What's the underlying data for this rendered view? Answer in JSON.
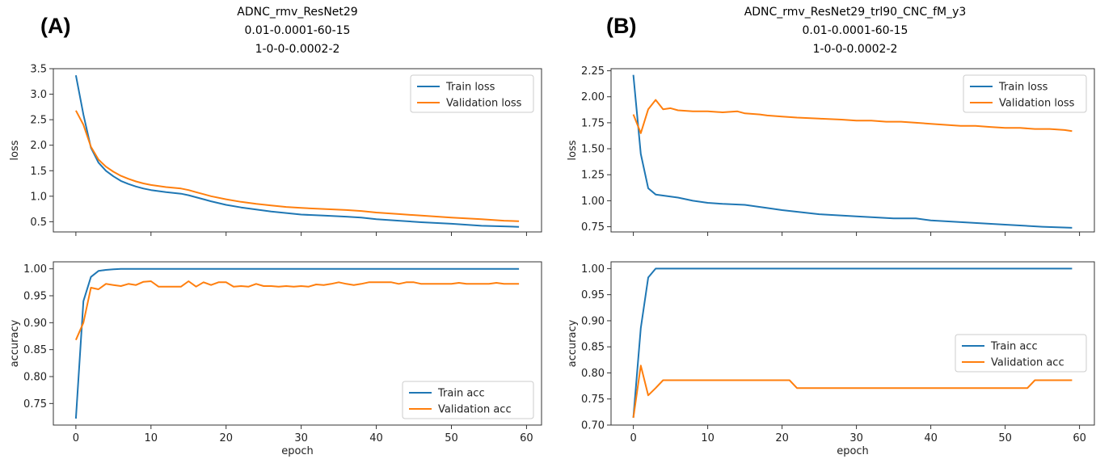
{
  "figure": {
    "panels": [
      {
        "label": "(A)",
        "title_lines": [
          "ADNC_rmv_ResNet29",
          "0.01-0.0001-60-15",
          "1-0-0-0.0002-2"
        ]
      },
      {
        "label": "(B)",
        "title_lines": [
          "ADNC_rmv_ResNet29_trl90_CNC_fM_y3",
          "0.01-0.0001-60-15",
          "1-0-0-0.0002-2"
        ]
      }
    ]
  },
  "colors": {
    "train": "#1f77b4",
    "validation": "#ff7f0e",
    "axis": "#333333"
  },
  "chart_data": [
    {
      "panel": "A",
      "type": "line",
      "ylabel": "loss",
      "xlabel": "",
      "xlim": [
        -3,
        62
      ],
      "ylim": [
        0.3,
        3.5
      ],
      "xticks": [
        0,
        10,
        20,
        30,
        40,
        50,
        60
      ],
      "yticks": [
        0.5,
        1.0,
        1.5,
        2.0,
        2.5,
        3.0,
        3.5
      ],
      "ytick_labels": [
        "0.5",
        "1.0",
        "1.5",
        "2.0",
        "2.5",
        "3.0",
        "3.5"
      ],
      "show_xtick_labels": false,
      "legend": "upper right",
      "series": [
        {
          "name": "Train loss",
          "role": "train",
          "x": [
            0,
            1,
            2,
            3,
            4,
            5,
            6,
            7,
            8,
            9,
            10,
            12,
            14,
            15,
            16,
            18,
            20,
            22,
            24,
            26,
            28,
            30,
            33,
            36,
            38,
            40,
            43,
            46,
            50,
            54,
            57,
            59
          ],
          "y": [
            3.37,
            2.6,
            1.95,
            1.66,
            1.5,
            1.39,
            1.3,
            1.24,
            1.19,
            1.15,
            1.12,
            1.08,
            1.05,
            1.02,
            0.98,
            0.9,
            0.83,
            0.78,
            0.74,
            0.7,
            0.67,
            0.64,
            0.62,
            0.6,
            0.58,
            0.55,
            0.52,
            0.49,
            0.46,
            0.42,
            0.41,
            0.4
          ]
        },
        {
          "name": "Validation loss",
          "role": "validation",
          "x": [
            0,
            1,
            2,
            3,
            4,
            5,
            6,
            7,
            8,
            9,
            10,
            12,
            14,
            15,
            16,
            18,
            20,
            22,
            24,
            26,
            28,
            30,
            33,
            36,
            38,
            40,
            43,
            46,
            50,
            54,
            57,
            59
          ],
          "y": [
            2.68,
            2.4,
            1.97,
            1.72,
            1.58,
            1.48,
            1.4,
            1.34,
            1.29,
            1.25,
            1.22,
            1.18,
            1.15,
            1.12,
            1.08,
            1.0,
            0.94,
            0.89,
            0.85,
            0.82,
            0.79,
            0.77,
            0.75,
            0.73,
            0.71,
            0.68,
            0.65,
            0.62,
            0.58,
            0.55,
            0.52,
            0.51
          ]
        }
      ]
    },
    {
      "panel": "A",
      "type": "line",
      "ylabel": "accuracy",
      "xlabel": "epoch",
      "xlim": [
        -3,
        62
      ],
      "ylim": [
        0.71,
        1.013
      ],
      "xticks": [
        0,
        10,
        20,
        30,
        40,
        50,
        60
      ],
      "yticks": [
        0.75,
        0.8,
        0.85,
        0.9,
        0.95,
        1.0
      ],
      "ytick_labels": [
        "0.75",
        "0.80",
        "0.85",
        "0.90",
        "0.95",
        "1.00"
      ],
      "show_xtick_labels": true,
      "legend": "lower right",
      "series": [
        {
          "name": "Train acc",
          "role": "train",
          "x": [
            0,
            1,
            2,
            3,
            4,
            5,
            6,
            7,
            8,
            10,
            15,
            20,
            30,
            40,
            50,
            59
          ],
          "y": [
            0.722,
            0.94,
            0.985,
            0.996,
            0.998,
            0.999,
            1.0,
            1.0,
            1.0,
            1.0,
            1.0,
            1.0,
            1.0,
            1.0,
            1.0,
            1.0
          ]
        },
        {
          "name": "Validation acc",
          "role": "validation",
          "x": [
            0,
            1,
            2,
            3,
            4,
            5,
            6,
            7,
            8,
            9,
            10,
            11,
            12,
            13,
            14,
            15,
            16,
            17,
            18,
            19,
            20,
            21,
            22,
            23,
            24,
            25,
            26,
            27,
            28,
            29,
            30,
            31,
            32,
            33,
            34,
            35,
            36,
            37,
            38,
            39,
            40,
            41,
            42,
            43,
            44,
            45,
            46,
            47,
            48,
            49,
            50,
            51,
            52,
            53,
            54,
            55,
            56,
            57,
            58,
            59
          ],
          "y": [
            0.868,
            0.9,
            0.965,
            0.962,
            0.972,
            0.97,
            0.968,
            0.972,
            0.97,
            0.976,
            0.977,
            0.967,
            0.967,
            0.967,
            0.967,
            0.977,
            0.967,
            0.975,
            0.97,
            0.975,
            0.975,
            0.967,
            0.968,
            0.967,
            0.972,
            0.968,
            0.968,
            0.967,
            0.968,
            0.967,
            0.968,
            0.967,
            0.971,
            0.97,
            0.972,
            0.975,
            0.972,
            0.97,
            0.972,
            0.975,
            0.975,
            0.975,
            0.975,
            0.972,
            0.975,
            0.975,
            0.972,
            0.972,
            0.972,
            0.972,
            0.972,
            0.974,
            0.972,
            0.972,
            0.972,
            0.972,
            0.974,
            0.972,
            0.972,
            0.972
          ]
        }
      ]
    },
    {
      "panel": "B",
      "type": "line",
      "ylabel": "loss",
      "xlabel": "",
      "xlim": [
        -3,
        62
      ],
      "ylim": [
        0.7,
        2.27
      ],
      "xticks": [
        0,
        10,
        20,
        30,
        40,
        50,
        60
      ],
      "yticks": [
        0.75,
        1.0,
        1.25,
        1.5,
        1.75,
        2.0,
        2.25
      ],
      "ytick_labels": [
        "0.75",
        "1.00",
        "1.25",
        "1.50",
        "1.75",
        "2.00",
        "2.25"
      ],
      "show_xtick_labels": false,
      "legend": "upper right",
      "series": [
        {
          "name": "Train loss",
          "role": "train",
          "x": [
            0,
            1,
            2,
            3,
            4,
            5,
            6,
            8,
            10,
            12,
            15,
            18,
            20,
            25,
            30,
            35,
            38,
            40,
            45,
            50,
            55,
            59
          ],
          "y": [
            2.21,
            1.45,
            1.12,
            1.06,
            1.05,
            1.04,
            1.03,
            1.0,
            0.98,
            0.97,
            0.96,
            0.93,
            0.91,
            0.87,
            0.85,
            0.83,
            0.83,
            0.81,
            0.79,
            0.77,
            0.75,
            0.74
          ]
        },
        {
          "name": "Validation loss",
          "role": "validation",
          "x": [
            0,
            1,
            2,
            3,
            4,
            5,
            6,
            8,
            10,
            12,
            14,
            15,
            17,
            18,
            20,
            22,
            25,
            28,
            30,
            32,
            34,
            36,
            38,
            40,
            42,
            44,
            46,
            48,
            50,
            52,
            54,
            56,
            58,
            59
          ],
          "y": [
            1.83,
            1.65,
            1.88,
            1.97,
            1.88,
            1.89,
            1.87,
            1.86,
            1.86,
            1.85,
            1.86,
            1.84,
            1.83,
            1.82,
            1.81,
            1.8,
            1.79,
            1.78,
            1.77,
            1.77,
            1.76,
            1.76,
            1.75,
            1.74,
            1.73,
            1.72,
            1.72,
            1.71,
            1.7,
            1.7,
            1.69,
            1.69,
            1.68,
            1.67
          ]
        }
      ]
    },
    {
      "panel": "B",
      "type": "line",
      "ylabel": "accuracy",
      "xlabel": "epoch",
      "xlim": [
        -3,
        62
      ],
      "ylim": [
        0.7,
        1.013
      ],
      "xticks": [
        0,
        10,
        20,
        30,
        40,
        50,
        60
      ],
      "yticks": [
        0.7,
        0.75,
        0.8,
        0.85,
        0.9,
        0.95,
        1.0
      ],
      "ytick_labels": [
        "0.70",
        "0.75",
        "0.80",
        "0.85",
        "0.90",
        "0.95",
        "1.00"
      ],
      "show_xtick_labels": true,
      "legend": "center right",
      "series": [
        {
          "name": "Train acc",
          "role": "train",
          "x": [
            0,
            1,
            2,
            3,
            4,
            10,
            20,
            30,
            40,
            50,
            59
          ],
          "y": [
            0.714,
            0.886,
            0.983,
            1.0,
            1.0,
            1.0,
            1.0,
            1.0,
            1.0,
            1.0,
            1.0
          ]
        },
        {
          "name": "Validation acc",
          "role": "validation",
          "x": [
            0,
            1,
            2,
            3,
            4,
            5,
            10,
            15,
            20,
            21,
            22,
            30,
            40,
            50,
            53,
            54,
            59
          ],
          "y": [
            0.714,
            0.814,
            0.757,
            0.771,
            0.786,
            0.786,
            0.786,
            0.786,
            0.786,
            0.786,
            0.771,
            0.771,
            0.771,
            0.771,
            0.771,
            0.786,
            0.786
          ]
        }
      ]
    }
  ]
}
